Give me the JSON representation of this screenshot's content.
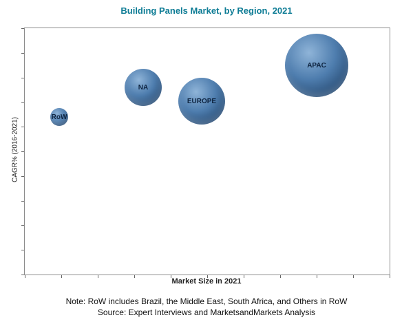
{
  "header": {
    "title": "Building Panels Market, by Region, 2021"
  },
  "colors": {
    "title": "#0E7C95",
    "bubble_highlight": "#8FB4D8",
    "bubble_mid": "#4E7DAE",
    "bubble_edge": "#1F4066",
    "bubble_label": "#0E2440",
    "plot_border": "#8C8C8C",
    "tick": "#666666"
  },
  "axes": {
    "y_label": "CAGR% (2016-2021)",
    "x_label": "Market Size in 2021"
  },
  "footer": {
    "note": "Note: RoW includes Brazil, the Middle East, South Africa, and Others in RoW",
    "source": "Source:  Expert Interviews and MarketsandMarkets Analysis"
  },
  "chart_data": {
    "type": "scatter",
    "subtype": "bubble",
    "title": "Building Panels Market, by Region, 2021",
    "xlabel": "Market Size in 2021",
    "ylabel": "CAGR% (2016-2021)",
    "x_range": [
      0,
      100
    ],
    "y_range": [
      0,
      100
    ],
    "grid": false,
    "tick_labels_visible": false,
    "x_tick_divisions": 10,
    "y_tick_divisions": 10,
    "points": [
      {
        "label": "RoW",
        "x": 9.5,
        "y": 64.0,
        "radius_px": 13
      },
      {
        "label": "NA",
        "x": 32.5,
        "y": 76.0,
        "radius_px": 27
      },
      {
        "label": "EUROPE",
        "x": 48.5,
        "y": 70.5,
        "radius_px": 34
      },
      {
        "label": "APAC",
        "x": 80.0,
        "y": 85.0,
        "radius_px": 46
      }
    ]
  }
}
